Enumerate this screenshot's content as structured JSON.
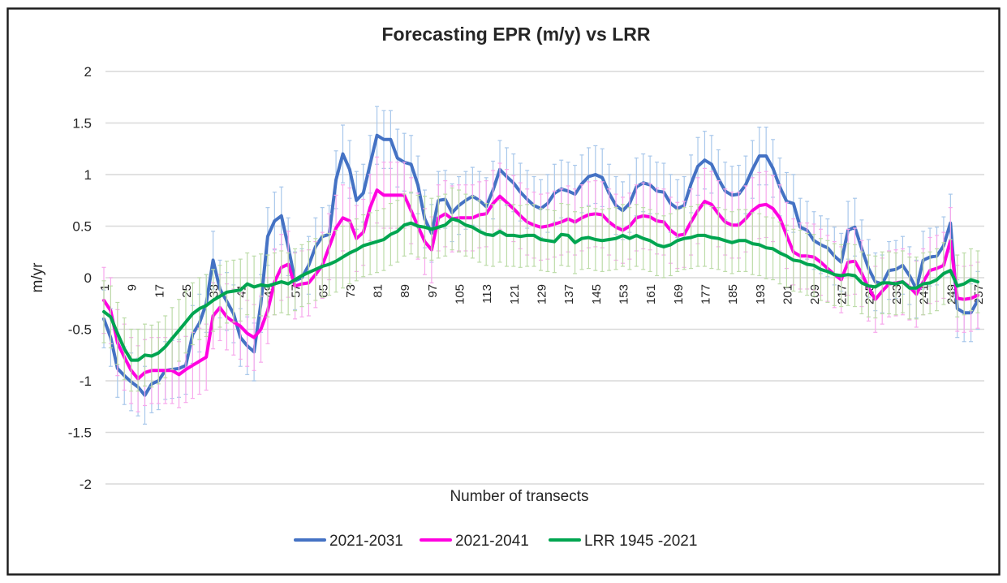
{
  "chart": {
    "title": "Forecasting EPR (m/y) vs LRR",
    "y_axis": {
      "label": "m/yr",
      "min": -2,
      "max": 2,
      "tick_step": 0.5,
      "tick_labels": [
        "2",
        "1.5",
        "1",
        "0.5",
        "0",
        "-0.5",
        "-1",
        "-1.5",
        "-2"
      ]
    },
    "x_axis": {
      "label": "Number of transects",
      "tick_labels": [
        1,
        9,
        17,
        25,
        33,
        41,
        49,
        57,
        65,
        73,
        81,
        89,
        97,
        105,
        113,
        121,
        129,
        137,
        145,
        153,
        161,
        169,
        177,
        185,
        193,
        201,
        209,
        217,
        225,
        233,
        241,
        249,
        257
      ]
    },
    "legend": [
      {
        "label": "2021-2031",
        "color": "#4472C4"
      },
      {
        "label": "2021-2041",
        "color": "#FF00E0"
      },
      {
        "label": "LRR 1945 -2021",
        "color": "#00A550"
      }
    ]
  },
  "chart_data": {
    "type": "line",
    "title": "Forecasting EPR (m/y) vs LRR",
    "xlabel": "Number of transects",
    "ylabel": "m/yr",
    "ylim": [
      -2,
      2
    ],
    "grid": true,
    "legend_position": "bottom",
    "x_start": 1,
    "x_step": 2,
    "x_end": 257,
    "series": [
      {
        "name": "2021-2031",
        "color": "#4472C4",
        "error_color": "#A9C8EB",
        "error": 0.28,
        "values": [
          -0.4,
          -0.58,
          -0.88,
          -0.95,
          -1.01,
          -1.06,
          -1.14,
          -1.03,
          -1.0,
          -0.9,
          -0.89,
          -0.88,
          -0.85,
          -0.55,
          -0.44,
          -0.25,
          0.17,
          -0.11,
          -0.23,
          -0.35,
          -0.58,
          -0.66,
          -0.72,
          -0.25,
          0.4,
          0.55,
          0.6,
          0.3,
          -0.03,
          0.0,
          0.12,
          0.3,
          0.4,
          0.42,
          0.95,
          1.2,
          1.05,
          0.75,
          0.82,
          1.1,
          1.38,
          1.34,
          1.34,
          1.16,
          1.12,
          1.1,
          0.9,
          0.57,
          0.43,
          0.75,
          0.76,
          0.63,
          0.7,
          0.75,
          0.79,
          0.75,
          0.69,
          0.85,
          1.05,
          0.98,
          0.92,
          0.83,
          0.76,
          0.7,
          0.67,
          0.72,
          0.82,
          0.86,
          0.84,
          0.81,
          0.91,
          0.98,
          1.0,
          0.97,
          0.82,
          0.7,
          0.65,
          0.72,
          0.88,
          0.92,
          0.9,
          0.84,
          0.83,
          0.72,
          0.67,
          0.7,
          0.91,
          1.08,
          1.14,
          1.1,
          0.96,
          0.84,
          0.8,
          0.81,
          0.9,
          1.05,
          1.18,
          1.18,
          1.06,
          0.88,
          0.74,
          0.72,
          0.49,
          0.46,
          0.36,
          0.32,
          0.29,
          0.21,
          0.15,
          0.46,
          0.49,
          0.28,
          0.09,
          -0.04,
          -0.06,
          0.07,
          0.08,
          0.12,
          0.02,
          -0.11,
          0.17,
          0.2,
          0.21,
          0.31,
          0.53,
          -0.3,
          -0.34,
          -0.34,
          -0.22
        ]
      },
      {
        "name": "2021-2041",
        "color": "#FF00E0",
        "error_color": "#F7A8EC",
        "error": 0.32,
        "values": [
          -0.22,
          -0.32,
          -0.63,
          -0.77,
          -0.9,
          -0.98,
          -0.92,
          -0.9,
          -0.9,
          -0.9,
          -0.9,
          -0.94,
          -0.89,
          -0.85,
          -0.81,
          -0.77,
          -0.37,
          -0.29,
          -0.38,
          -0.43,
          -0.47,
          -0.54,
          -0.58,
          -0.5,
          -0.32,
          -0.04,
          0.1,
          0.13,
          -0.08,
          -0.06,
          -0.05,
          0.03,
          0.12,
          0.3,
          0.48,
          0.58,
          0.55,
          0.38,
          0.44,
          0.68,
          0.85,
          0.8,
          0.8,
          0.8,
          0.8,
          0.65,
          0.5,
          0.35,
          0.27,
          0.58,
          0.62,
          0.57,
          0.58,
          0.58,
          0.58,
          0.61,
          0.62,
          0.72,
          0.79,
          0.73,
          0.67,
          0.6,
          0.54,
          0.51,
          0.49,
          0.5,
          0.52,
          0.54,
          0.57,
          0.54,
          0.58,
          0.61,
          0.62,
          0.61,
          0.54,
          0.49,
          0.46,
          0.5,
          0.58,
          0.6,
          0.59,
          0.55,
          0.54,
          0.46,
          0.41,
          0.42,
          0.54,
          0.65,
          0.74,
          0.71,
          0.62,
          0.54,
          0.51,
          0.51,
          0.57,
          0.65,
          0.7,
          0.71,
          0.67,
          0.58,
          0.41,
          0.25,
          0.21,
          0.21,
          0.2,
          0.15,
          0.09,
          0.03,
          -0.02,
          0.15,
          0.16,
          0.04,
          -0.1,
          -0.21,
          -0.13,
          -0.06,
          -0.05,
          -0.04,
          -0.09,
          -0.16,
          -0.04,
          0.07,
          0.09,
          0.12,
          0.36,
          -0.2,
          -0.21,
          -0.2,
          -0.17
        ]
      },
      {
        "name": "LRR 1945 -2021",
        "color": "#00A550",
        "error_color": "#BDDCA9",
        "error": 0.3,
        "values": [
          -0.33,
          -0.38,
          -0.54,
          -0.69,
          -0.8,
          -0.8,
          -0.75,
          -0.76,
          -0.73,
          -0.67,
          -0.59,
          -0.51,
          -0.43,
          -0.35,
          -0.3,
          -0.27,
          -0.22,
          -0.18,
          -0.14,
          -0.13,
          -0.12,
          -0.06,
          -0.09,
          -0.07,
          -0.08,
          -0.06,
          -0.04,
          -0.06,
          -0.02,
          0.02,
          0.05,
          0.08,
          0.11,
          0.13,
          0.16,
          0.2,
          0.24,
          0.27,
          0.31,
          0.33,
          0.35,
          0.37,
          0.42,
          0.45,
          0.51,
          0.53,
          0.5,
          0.49,
          0.47,
          0.49,
          0.51,
          0.57,
          0.55,
          0.51,
          0.49,
          0.45,
          0.42,
          0.41,
          0.45,
          0.41,
          0.41,
          0.4,
          0.41,
          0.41,
          0.37,
          0.36,
          0.35,
          0.42,
          0.41,
          0.34,
          0.38,
          0.39,
          0.37,
          0.36,
          0.37,
          0.38,
          0.41,
          0.38,
          0.41,
          0.38,
          0.36,
          0.32,
          0.3,
          0.32,
          0.36,
          0.38,
          0.39,
          0.41,
          0.41,
          0.39,
          0.38,
          0.36,
          0.34,
          0.36,
          0.36,
          0.33,
          0.32,
          0.29,
          0.28,
          0.24,
          0.21,
          0.17,
          0.16,
          0.13,
          0.12,
          0.08,
          0.06,
          0.03,
          0.02,
          0.03,
          0.02,
          -0.05,
          -0.08,
          -0.09,
          -0.05,
          -0.05,
          -0.06,
          -0.04,
          -0.1,
          -0.1,
          -0.06,
          -0.05,
          -0.02,
          0.04,
          0.07,
          -0.08,
          -0.06,
          -0.02,
          -0.04
        ]
      }
    ]
  },
  "style": {
    "gridline_color": "#D9D9D9",
    "border_color": "#1a1a1a",
    "text_color": "#262626",
    "background": "#FFFFFF"
  }
}
